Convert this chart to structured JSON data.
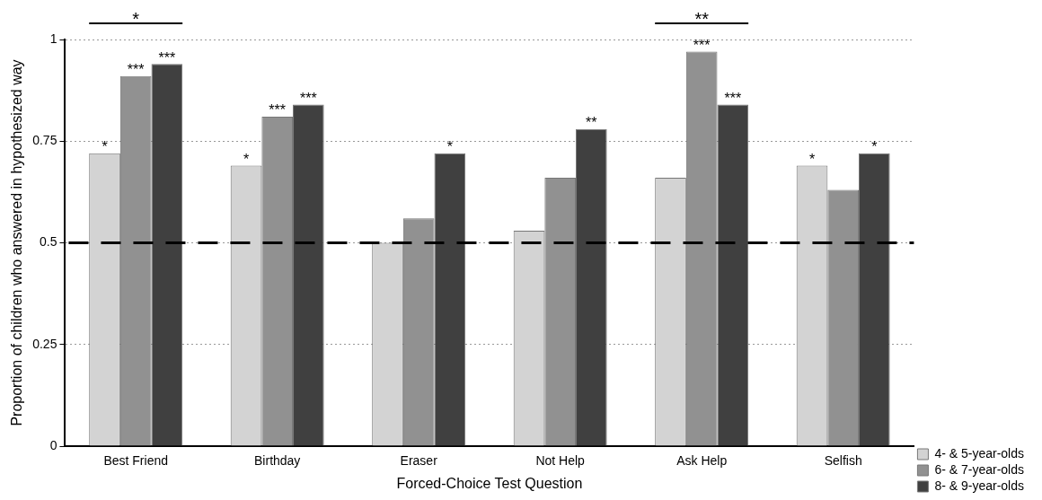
{
  "chart_data": {
    "type": "bar",
    "xlabel": "Forced-Choice Test Question",
    "ylabel": "Proportion of children who answered in hypothesized way",
    "categories": [
      "Best Friend",
      "Birthday",
      "Eraser",
      "Not Help",
      "Ask Help",
      "Selfish"
    ],
    "series": [
      {
        "name": "4- & 5-year-olds",
        "color": "#d3d3d3",
        "values": [
          0.72,
          0.69,
          0.5,
          0.53,
          0.66,
          0.69
        ],
        "value_labels": [
          "*",
          "*",
          null,
          null,
          null,
          "*"
        ]
      },
      {
        "name": "6- & 7-year-olds",
        "color": "#919191",
        "values": [
          0.91,
          0.81,
          0.56,
          0.66,
          0.97,
          0.63
        ],
        "value_labels": [
          "***",
          "***",
          null,
          null,
          "***",
          null
        ]
      },
      {
        "name": "8- & 9-year-olds",
        "color": "#404040",
        "values": [
          0.94,
          0.84,
          0.72,
          0.78,
          0.84,
          0.72
        ],
        "value_labels": [
          "***",
          "***",
          "*",
          "**",
          "***",
          "*"
        ]
      }
    ],
    "ylim": [
      0,
      1
    ],
    "yticks": [
      0,
      {
        "value": 0.25,
        "label": "0.25"
      },
      {
        "value": 0.5,
        "label": "0.5"
      },
      {
        "value": 0.75,
        "label": "0.75"
      },
      1
    ],
    "grid": "y",
    "legend": "bottom right",
    "ref_lines": [
      {
        "axis": "y",
        "value": 0.5,
        "color": "#000000",
        "line_style": "dashed"
      }
    ],
    "annotations": [
      "*",
      "**"
    ]
  }
}
